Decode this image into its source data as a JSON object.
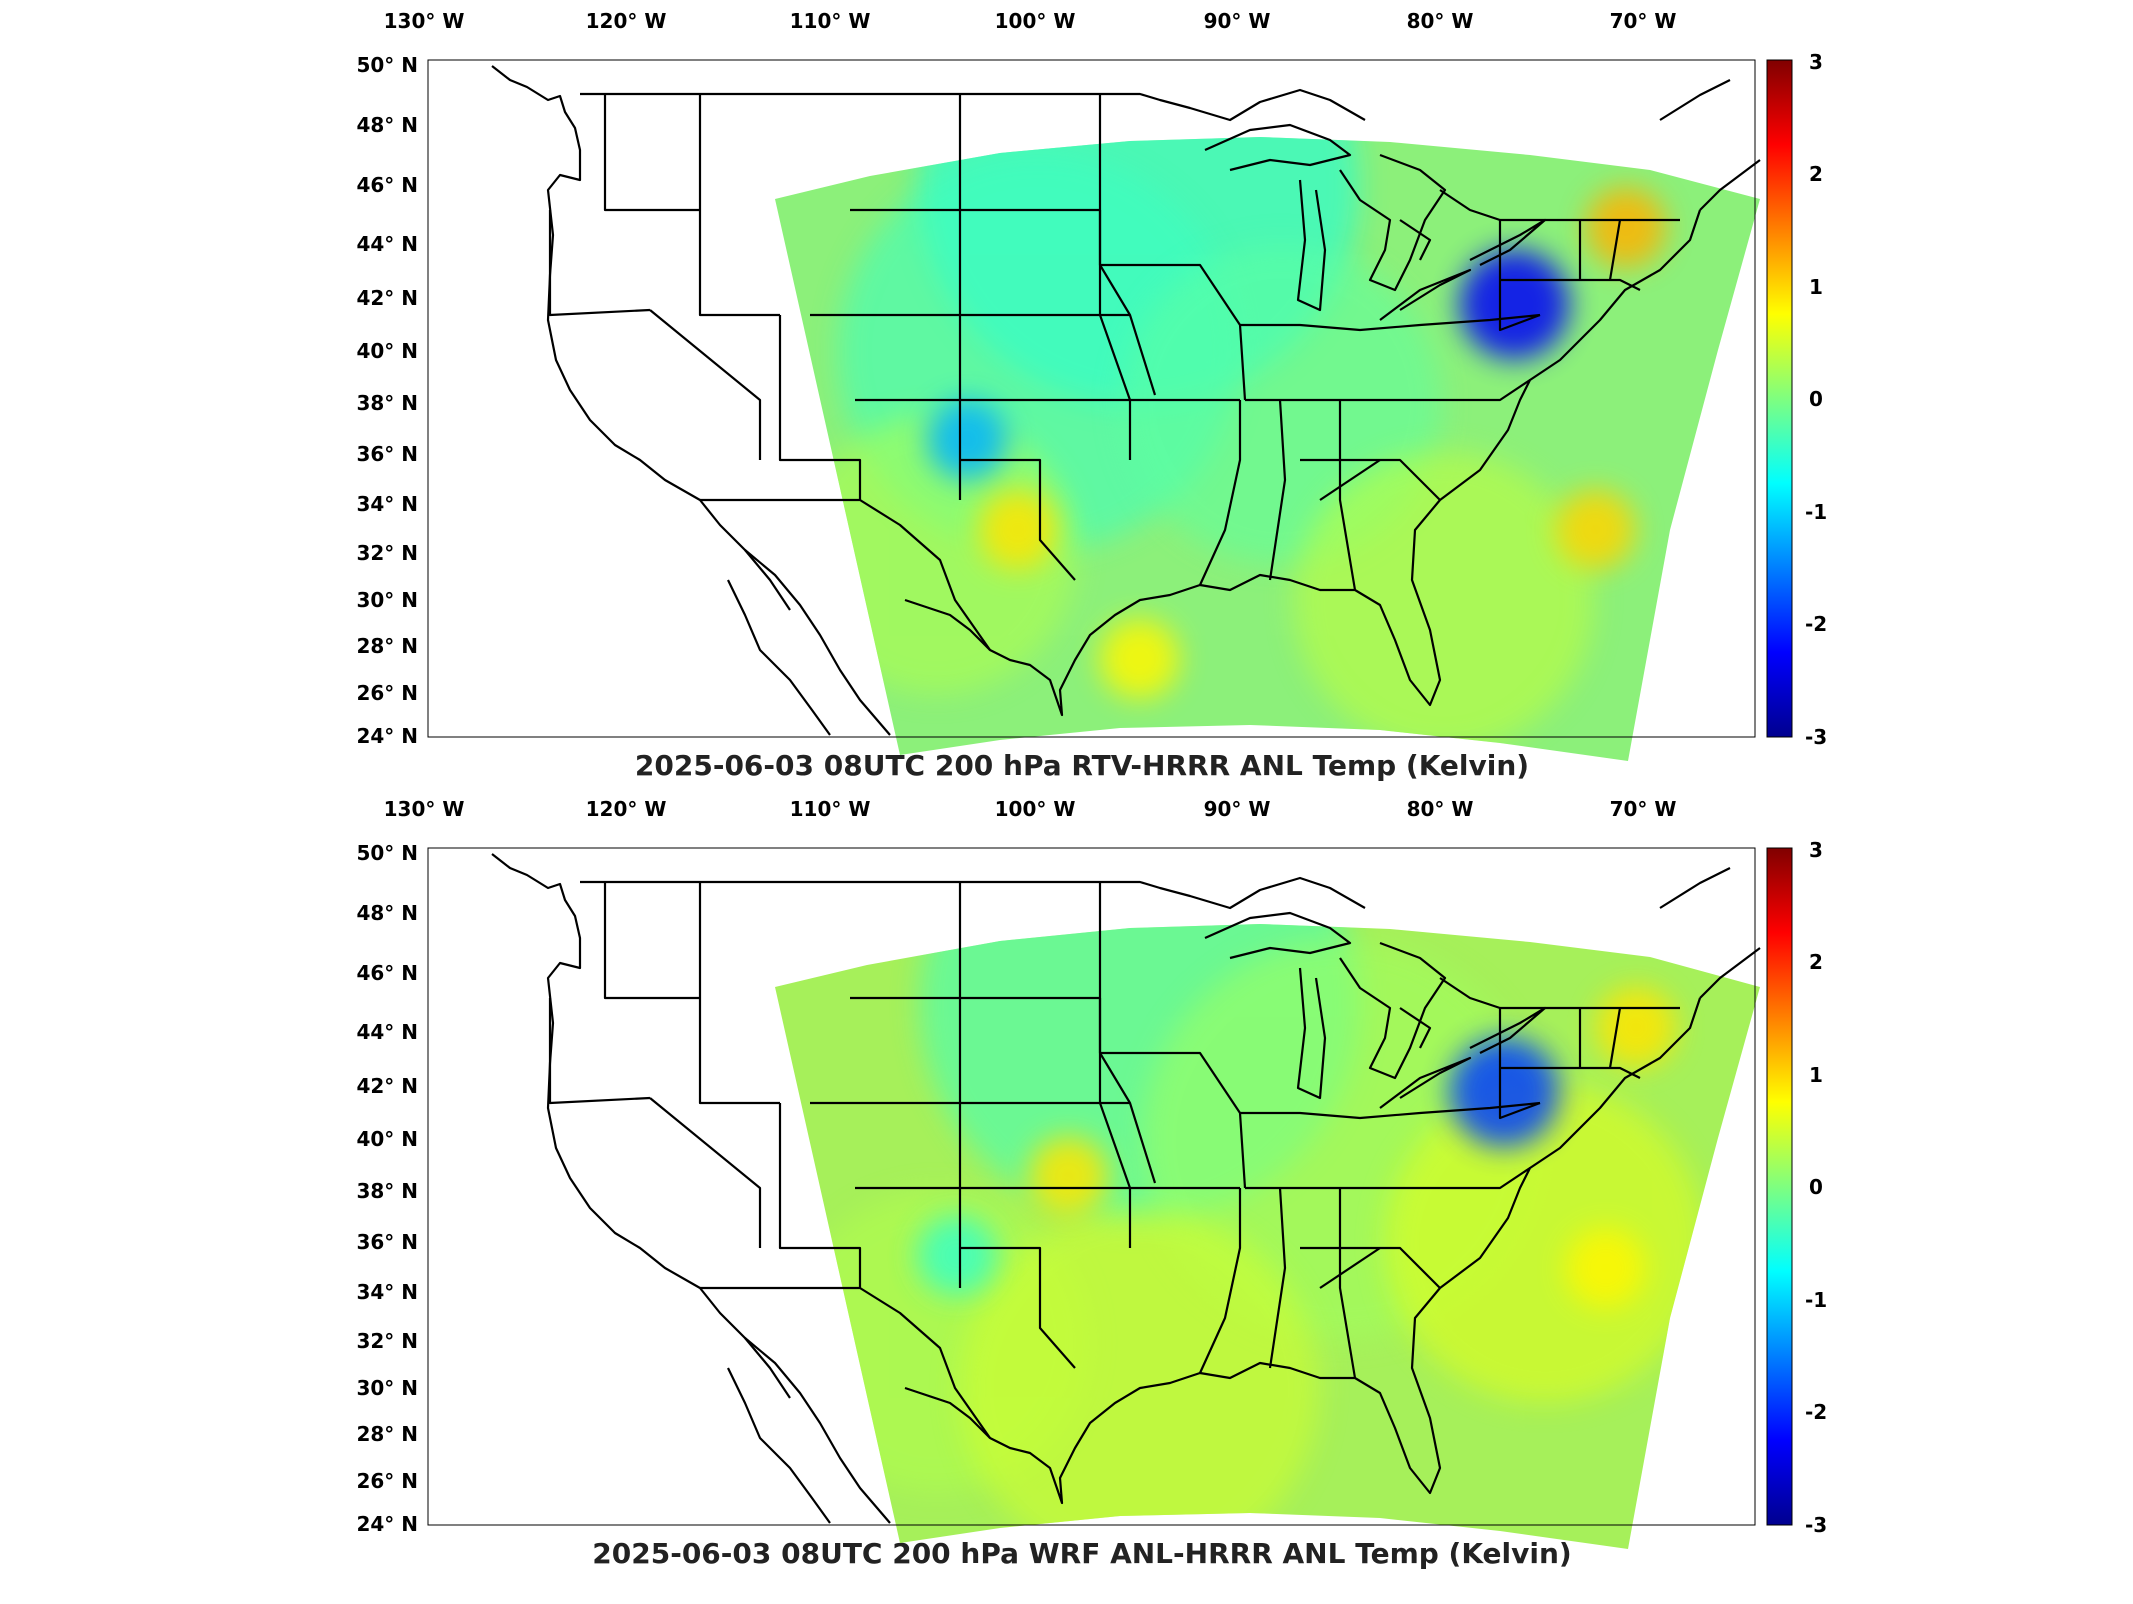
{
  "figure": {
    "panels": [
      {
        "id": "rtv",
        "title": "2025-06-03 08UTC 200 hPa RTV-HRRR ANL Temp (Kelvin)",
        "colorbar_ticks": [
          "3",
          "2",
          "1",
          "0",
          "-1",
          "-2",
          "-3"
        ],
        "highlights": [
          {
            "lon": -76.5,
            "lat": 41.8,
            "value": -2.3
          },
          {
            "lon": -71.0,
            "lat": 44.6,
            "value": 1.2
          },
          {
            "lon": -103.5,
            "lat": 36.6,
            "value": -1.2
          },
          {
            "lon": -101.0,
            "lat": 33.0,
            "value": 0.9
          },
          {
            "lon": -72.5,
            "lat": 33.0,
            "value": 1.0
          },
          {
            "lon": -95.0,
            "lat": 27.5,
            "value": 0.8
          }
        ]
      },
      {
        "id": "wrf",
        "title": "2025-06-03 08UTC 200 hPa WRF ANL-HRRR ANL Temp (Kelvin)",
        "colorbar_ticks": [
          "3",
          "2",
          "1",
          "0",
          "-1",
          "-2",
          "-3"
        ],
        "highlights": [
          {
            "lon": -77.0,
            "lat": 41.8,
            "value": -1.9
          },
          {
            "lon": -70.5,
            "lat": 44.2,
            "value": 0.9
          },
          {
            "lon": -98.5,
            "lat": 38.6,
            "value": 0.9
          },
          {
            "lon": -72.0,
            "lat": 35.0,
            "value": 0.8
          },
          {
            "lon": -104.0,
            "lat": 35.5,
            "value": -0.4
          }
        ]
      }
    ],
    "lon_ticks": [
      "130° W",
      "120° W",
      "110° W",
      "100° W",
      "90° W",
      "80° W",
      "70° W"
    ],
    "lat_ticks": [
      "50° N",
      "48° N",
      "46° N",
      "44° N",
      "42° N",
      "40° N",
      "38° N",
      "36° N",
      "34° N",
      "32° N",
      "30° N",
      "28° N",
      "26° N",
      "24° N"
    ],
    "colorbar_range": [
      -3,
      3
    ],
    "colormap": "jet",
    "colors": {
      "jet_low": "#00008f",
      "jet_mid": "#7fff7f",
      "jet_high": "#800000",
      "border": "#000000"
    }
  }
}
